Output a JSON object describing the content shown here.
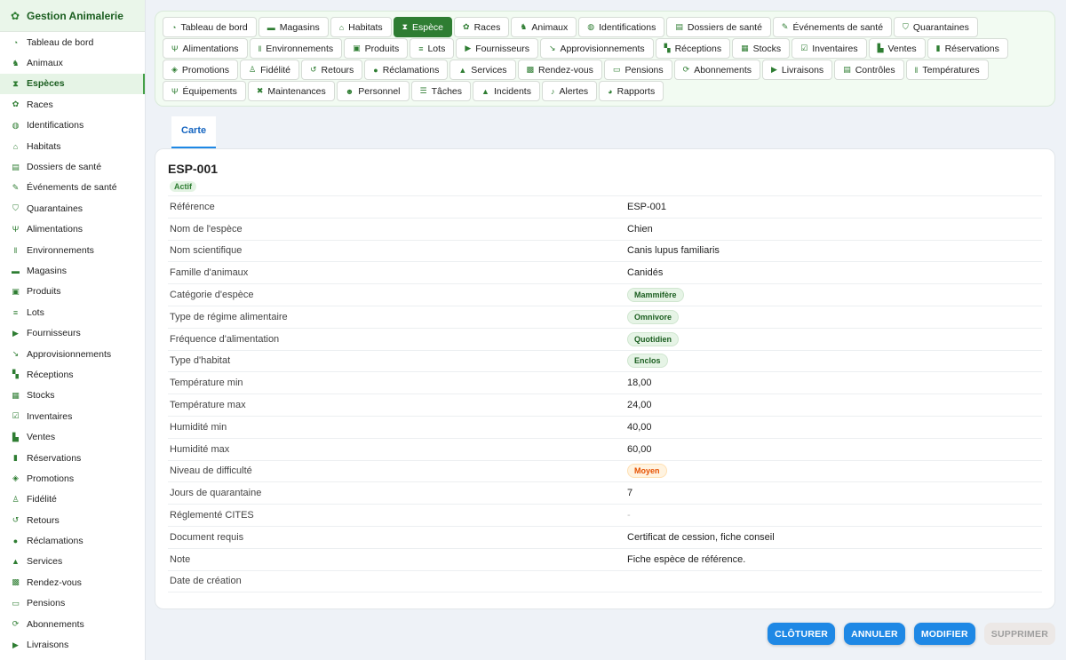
{
  "app": {
    "title": "Gestion Animalerie",
    "logo_icon": "paw-icon"
  },
  "sidebar": {
    "active": "Espèces",
    "items": [
      {
        "label": "Tableau de bord",
        "icon": "dashboard-icon",
        "glyph": "◔"
      },
      {
        "label": "Animaux",
        "icon": "dog-icon",
        "glyph": "♞"
      },
      {
        "label": "Espèces",
        "icon": "dna-icon",
        "glyph": "⧗"
      },
      {
        "label": "Races",
        "icon": "paw-icon",
        "glyph": "✿"
      },
      {
        "label": "Identifications",
        "icon": "fingerprint-icon",
        "glyph": "◍"
      },
      {
        "label": "Habitats",
        "icon": "house-icon",
        "glyph": "⌂"
      },
      {
        "label": "Dossiers de santé",
        "icon": "file-medical-icon",
        "glyph": "▤"
      },
      {
        "label": "Événements de santé",
        "icon": "syringe-icon",
        "glyph": "✎"
      },
      {
        "label": "Quarantaines",
        "icon": "shield-icon",
        "glyph": "⛉"
      },
      {
        "label": "Alimentations",
        "icon": "utensils-icon",
        "glyph": "Ψ"
      },
      {
        "label": "Environnements",
        "icon": "thermometer-icon",
        "glyph": "ǁ"
      },
      {
        "label": "Magasins",
        "icon": "store-icon",
        "glyph": "▬"
      },
      {
        "label": "Produits",
        "icon": "box-icon",
        "glyph": "▣"
      },
      {
        "label": "Lots",
        "icon": "list-icon",
        "glyph": "≡"
      },
      {
        "label": "Fournisseurs",
        "icon": "truck-icon",
        "glyph": "▶"
      },
      {
        "label": "Approvisionnements",
        "icon": "dolly-icon",
        "glyph": "↘"
      },
      {
        "label": "Réceptions",
        "icon": "truck-loading-icon",
        "glyph": "▚"
      },
      {
        "label": "Stocks",
        "icon": "warehouse-icon",
        "glyph": "▦"
      },
      {
        "label": "Inventaires",
        "icon": "clipboard-check-icon",
        "glyph": "☑"
      },
      {
        "label": "Ventes",
        "icon": "cash-register-icon",
        "glyph": "▙"
      },
      {
        "label": "Réservations",
        "icon": "bookmark-icon",
        "glyph": "▮"
      },
      {
        "label": "Promotions",
        "icon": "tags-icon",
        "glyph": "◈"
      },
      {
        "label": "Fidélité",
        "icon": "user-tag-icon",
        "glyph": "♙"
      },
      {
        "label": "Retours",
        "icon": "undo-icon",
        "glyph": "↺"
      },
      {
        "label": "Réclamations",
        "icon": "comment-icon",
        "glyph": "●"
      },
      {
        "label": "Services",
        "icon": "concierge-bell-icon",
        "glyph": "▲"
      },
      {
        "label": "Rendez-vous",
        "icon": "calendar-check-icon",
        "glyph": "▩"
      },
      {
        "label": "Pensions",
        "icon": "bed-icon",
        "glyph": "▭"
      },
      {
        "label": "Abonnements",
        "icon": "sync-icon",
        "glyph": "⟳"
      },
      {
        "label": "Livraisons",
        "icon": "shipping-fast-icon",
        "glyph": "▶"
      }
    ]
  },
  "topnav": {
    "active": "Espèce",
    "items": [
      {
        "label": "Tableau de bord",
        "icon": "dashboard-icon",
        "glyph": "◔"
      },
      {
        "label": "Magasins",
        "icon": "store-icon",
        "glyph": "▬"
      },
      {
        "label": "Habitats",
        "icon": "house-icon",
        "glyph": "⌂"
      },
      {
        "label": "Espèce",
        "icon": "dna-icon",
        "glyph": "⧗"
      },
      {
        "label": "Races",
        "icon": "paw-icon",
        "glyph": "✿"
      },
      {
        "label": "Animaux",
        "icon": "dog-icon",
        "glyph": "♞"
      },
      {
        "label": "Identifications",
        "icon": "fingerprint-icon",
        "glyph": "◍"
      },
      {
        "label": "Dossiers de santé",
        "icon": "file-medical-icon",
        "glyph": "▤"
      },
      {
        "label": "Événements de santé",
        "icon": "syringe-icon",
        "glyph": "✎"
      },
      {
        "label": "Quarantaines",
        "icon": "shield-icon",
        "glyph": "⛉"
      },
      {
        "label": "Alimentations",
        "icon": "utensils-icon",
        "glyph": "Ψ"
      },
      {
        "label": "Environnements",
        "icon": "thermometer-icon",
        "glyph": "ǁ"
      },
      {
        "label": "Produits",
        "icon": "box-icon",
        "glyph": "▣"
      },
      {
        "label": "Lots",
        "icon": "list-icon",
        "glyph": "≡"
      },
      {
        "label": "Fournisseurs",
        "icon": "truck-icon",
        "glyph": "▶"
      },
      {
        "label": "Approvisionnements",
        "icon": "dolly-icon",
        "glyph": "↘"
      },
      {
        "label": "Réceptions",
        "icon": "truck-loading-icon",
        "glyph": "▚"
      },
      {
        "label": "Stocks",
        "icon": "warehouse-icon",
        "glyph": "▦"
      },
      {
        "label": "Inventaires",
        "icon": "clipboard-check-icon",
        "glyph": "☑"
      },
      {
        "label": "Ventes",
        "icon": "cash-register-icon",
        "glyph": "▙"
      },
      {
        "label": "Réservations",
        "icon": "bookmark-icon",
        "glyph": "▮"
      },
      {
        "label": "Promotions",
        "icon": "tags-icon",
        "glyph": "◈"
      },
      {
        "label": "Fidélité",
        "icon": "user-tag-icon",
        "glyph": "♙"
      },
      {
        "label": "Retours",
        "icon": "undo-icon",
        "glyph": "↺"
      },
      {
        "label": "Réclamations",
        "icon": "comment-icon",
        "glyph": "●"
      },
      {
        "label": "Services",
        "icon": "concierge-bell-icon",
        "glyph": "▲"
      },
      {
        "label": "Rendez-vous",
        "icon": "calendar-check-icon",
        "glyph": "▩"
      },
      {
        "label": "Pensions",
        "icon": "bed-icon",
        "glyph": "▭"
      },
      {
        "label": "Abonnements",
        "icon": "sync-icon",
        "glyph": "⟳"
      },
      {
        "label": "Livraisons",
        "icon": "shipping-fast-icon",
        "glyph": "▶"
      },
      {
        "label": "Contrôles",
        "icon": "clipboard-icon",
        "glyph": "▤"
      },
      {
        "label": "Températures",
        "icon": "thermometer-icon",
        "glyph": "ǁ"
      },
      {
        "label": "Équipements",
        "icon": "plug-icon",
        "glyph": "Ψ"
      },
      {
        "label": "Maintenances",
        "icon": "tools-icon",
        "glyph": "✖"
      },
      {
        "label": "Personnel",
        "icon": "users-icon",
        "glyph": "☻"
      },
      {
        "label": "Tâches",
        "icon": "tasks-icon",
        "glyph": "☰"
      },
      {
        "label": "Incidents",
        "icon": "warning-icon",
        "glyph": "▲"
      },
      {
        "label": "Alertes",
        "icon": "bell-icon",
        "glyph": "♪"
      },
      {
        "label": "Rapports",
        "icon": "chart-pie-icon",
        "glyph": "◕"
      }
    ]
  },
  "tabs": [
    {
      "label": "Carte"
    }
  ],
  "record": {
    "title": "ESP-001",
    "status": "Actif",
    "fields": [
      {
        "label": "Référence",
        "value": "ESP-001"
      },
      {
        "label": "Nom de l'espèce",
        "value": "Chien"
      },
      {
        "label": "Nom scientifique",
        "value": "Canis lupus familiaris"
      },
      {
        "label": "Famille d'animaux",
        "value": "Canidés"
      },
      {
        "label": "Catégorie d'espèce",
        "value": "Mammifère",
        "pill": "green"
      },
      {
        "label": "Type de régime alimentaire",
        "value": "Omnivore",
        "pill": "green"
      },
      {
        "label": "Fréquence d'alimentation",
        "value": "Quotidien",
        "pill": "green"
      },
      {
        "label": "Type d'habitat",
        "value": "Enclos",
        "pill": "green"
      },
      {
        "label": "Température min",
        "value": "18,00"
      },
      {
        "label": "Température max",
        "value": "24,00"
      },
      {
        "label": "Humidité min",
        "value": "40,00"
      },
      {
        "label": "Humidité max",
        "value": "60,00"
      },
      {
        "label": "Niveau de difficulté",
        "value": "Moyen",
        "pill": "orange"
      },
      {
        "label": "Jours de quarantaine",
        "value": "7"
      },
      {
        "label": "Réglementé CITES",
        "value": "-",
        "muted": true
      },
      {
        "label": "Document requis",
        "value": "Certificat de cession, fiche conseil"
      },
      {
        "label": "Note",
        "value": "Fiche espèce de référence."
      },
      {
        "label": "Date de création",
        "value": ""
      }
    ]
  },
  "actions": {
    "close_label": "CLÔTURER",
    "cancel_label": "ANNULER",
    "edit_label": "MODIFIER",
    "delete_label": "SUPPRIMER"
  },
  "colors": {
    "accent": "#2e7d32",
    "primary": "#1e88e5",
    "warning": "#e65100"
  }
}
